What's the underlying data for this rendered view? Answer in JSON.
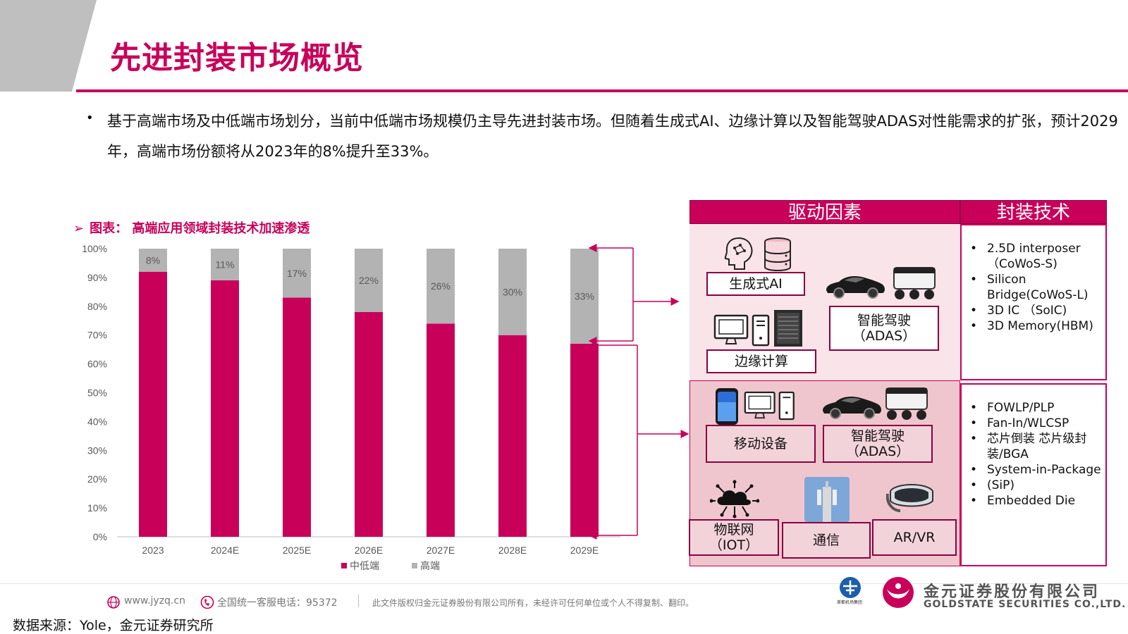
{
  "page_title": "先进封装市场概览",
  "bullet": {
    "text": "基于高端市场及中低端市场划分，当前中低端市场规模仍主导先进封装市场。但随着生成式AI、边缘计算以及智能驾驶ADAS对性能需求的扩张，预计2029年，高端市场份额将从2023年的8%提升至33%。"
  },
  "chart_caption": "图表：  高端应用领域封装技术加速渗透",
  "colors": {
    "accent": "#c8005a",
    "grey_series": "#b3b3b3",
    "zone_light": "#f9e4e9",
    "zone_dark": "#f0c6ce"
  },
  "chart_data": {
    "type": "bar",
    "stacked": true,
    "categories": [
      "2023",
      "2024E",
      "2025E",
      "2026E",
      "2027E",
      "2028E",
      "2029E"
    ],
    "series": [
      {
        "name": "中低端",
        "values": [
          92,
          89,
          83,
          78,
          74,
          70,
          67
        ],
        "color": "#c8005a"
      },
      {
        "name": "高端",
        "values": [
          8,
          11,
          17,
          22,
          26,
          30,
          33
        ],
        "color": "#b3b3b3"
      }
    ],
    "data_labels": [
      "8%",
      "11%",
      "17%",
      "22%",
      "26%",
      "30%",
      "33%"
    ],
    "y_ticks": [
      "0%",
      "10%",
      "20%",
      "30%",
      "40%",
      "50%",
      "60%",
      "70%",
      "80%",
      "90%",
      "100%"
    ],
    "ylim": [
      0,
      100
    ],
    "legend_position": "bottom-center",
    "grid": false
  },
  "drivers_header": "驱动因素",
  "tech_header": "封装技术",
  "high_end_drivers": {
    "gen_ai": "生成式AI",
    "edge": "边缘计算",
    "adas_line1": "智能驾驶",
    "adas_line2": "（ADAS）"
  },
  "mid_low_drivers": {
    "mobile": "移动设备",
    "adas_line1": "智能驾驶",
    "adas_line2": "（ADAS）",
    "iot_line1": "物联网",
    "iot_line2": "（IOT）",
    "comm": "通信",
    "arvr": "AR/VR"
  },
  "high_end_tech": [
    "2.5D interposer（CoWoS-S)",
    "Silicon Bridge(CoWoS-L)",
    "3D IC （SoIC)",
    "3D Memory(HBM)"
  ],
  "mid_low_tech": [
    "FOWLP/PLP",
    "Fan-In/WLCSP",
    "芯片倒装 芯片级封装/BGA",
    "System-in-Package",
    "(SiP)",
    " Embedded Die"
  ],
  "footer": {
    "website": "www.jyzq.cn",
    "hotline": "全国统一客服电话：95372",
    "disclaimer": "此文件版权归金元证券股份有限公司所有，未经许可任何单位或个人不得复制、翻印。",
    "company_cn": "金元证券股份有限公司",
    "company_en": "GOLDSTATE SECURITIES CO.,LTD.",
    "airport_cn": "首都机场集团"
  },
  "source": "数据来源：Yole，金元证券研究所"
}
